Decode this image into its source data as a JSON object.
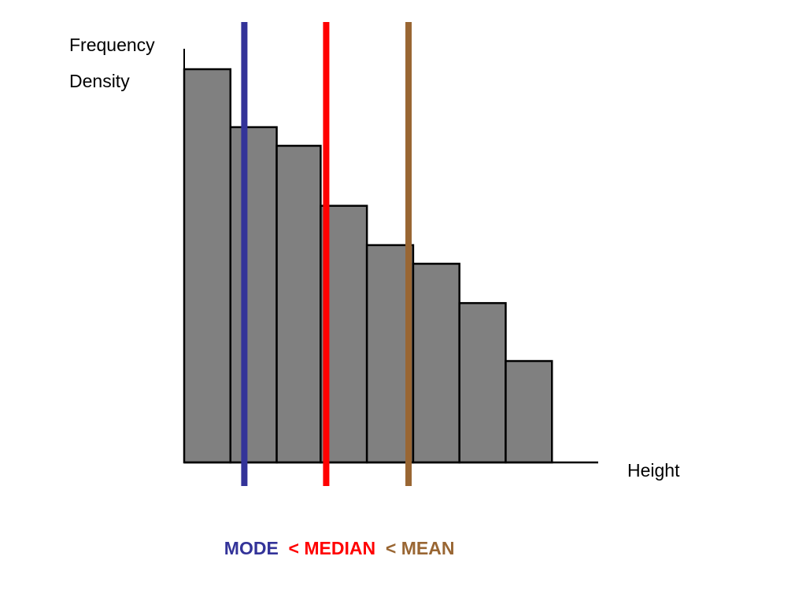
{
  "chart_data": {
    "type": "bar",
    "title": "",
    "ylabel_lines": [
      "Frequency",
      "Density"
    ],
    "xlabel": "Height",
    "ylim": [
      0,
      100
    ],
    "bar_fill": "#808080",
    "bar_stroke": "#000000",
    "bars": [
      {
        "x0": 0,
        "x1": 1,
        "value": 95
      },
      {
        "x0": 1,
        "x1": 2,
        "value": 81
      },
      {
        "x0": 2,
        "x1": 2.95,
        "value": 76.5
      },
      {
        "x0": 2.95,
        "x1": 3.95,
        "value": 62
      },
      {
        "x0": 3.95,
        "x1": 4.95,
        "value": 52.5
      },
      {
        "x0": 4.95,
        "x1": 5.95,
        "value": 48
      },
      {
        "x0": 5.95,
        "x1": 6.95,
        "value": 38.5
      },
      {
        "x0": 6.95,
        "x1": 7.95,
        "value": 24.5
      }
    ],
    "xlim": [
      0,
      8.95
    ],
    "vlines": [
      {
        "id": "mode",
        "x": 1.3,
        "color": "#333399"
      },
      {
        "id": "median",
        "x": 3.07,
        "color": "#ff0000"
      },
      {
        "id": "mean",
        "x": 4.85,
        "color": "#996633"
      }
    ],
    "caption": [
      {
        "text": "MODE",
        "color": "#333399"
      },
      {
        "text": "  < MEDIAN",
        "color": "#ff0000"
      },
      {
        "text": "  < MEAN",
        "color": "#996633"
      }
    ]
  }
}
